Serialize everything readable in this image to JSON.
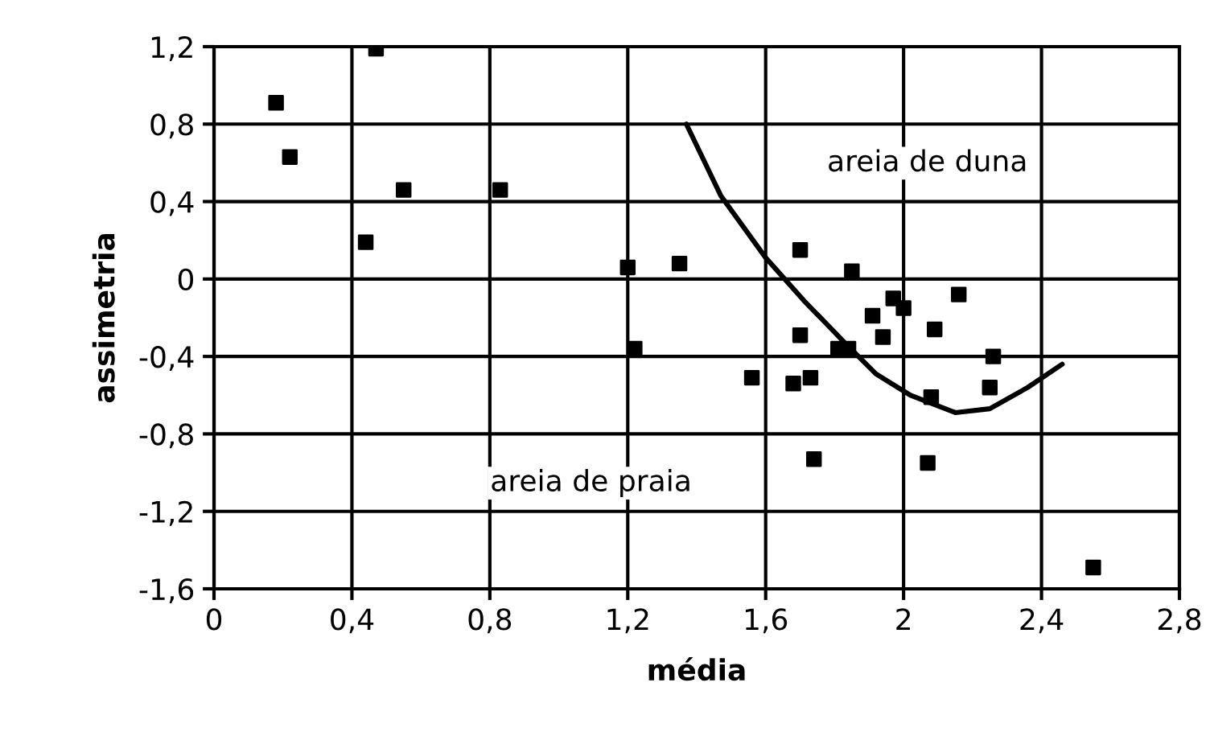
{
  "chart_data": {
    "type": "scatter",
    "xlabel": "média",
    "ylabel": "assimetria",
    "xlim": [
      0,
      2.8
    ],
    "ylim": [
      -1.6,
      1.2
    ],
    "xticks": [
      0,
      {
        "value": 0.4,
        "label": "0,4"
      },
      {
        "value": 0.8,
        "label": "0,8"
      },
      {
        "value": 1.2,
        "label": "1,2"
      },
      {
        "value": 1.6,
        "label": "1,6"
      },
      2,
      {
        "value": 2.4,
        "label": "2,4"
      },
      {
        "value": 2.8,
        "label": "2,8"
      }
    ],
    "yticks": [
      {
        "value": -1.6,
        "label": "-1,6"
      },
      {
        "value": -1.2,
        "label": "-1,2"
      },
      {
        "value": -0.8,
        "label": "-0,8"
      },
      {
        "value": -0.4,
        "label": "-0,4"
      },
      0,
      {
        "value": 0.4,
        "label": "0,4"
      },
      {
        "value": 0.8,
        "label": "0,8"
      },
      {
        "value": 1.2,
        "label": "1,2"
      }
    ],
    "grid": true,
    "legend": false,
    "series": [
      {
        "color": "#000000",
        "marker": "square",
        "x": [
          0.18,
          0.22,
          0.47,
          0.55,
          0.44,
          0.83,
          1.2,
          1.35,
          1.22,
          1.7,
          1.85,
          2.16,
          2.0,
          1.91,
          1.97,
          1.7,
          1.94,
          2.09,
          1.81,
          1.84,
          2.26,
          1.56,
          1.73,
          1.68,
          2.25,
          2.08,
          1.74,
          2.07,
          2.55
        ],
        "values": [
          0.91,
          0.63,
          1.19,
          0.46,
          0.19,
          0.46,
          0.06,
          0.08,
          -0.36,
          0.15,
          0.04,
          -0.08,
          -0.15,
          -0.19,
          -0.1,
          -0.29,
          -0.3,
          -0.26,
          -0.36,
          -0.36,
          -0.4,
          -0.51,
          -0.51,
          -0.54,
          -0.56,
          -0.61,
          -0.93,
          -0.95,
          -1.49
        ]
      },
      {
        "type": "line",
        "color": "#000000",
        "marker": "none",
        "line_style": "solid",
        "x": [
          1.37,
          1.47,
          1.6,
          1.71,
          1.83,
          1.92,
          2.02,
          2.15,
          2.25,
          2.36,
          2.46
        ],
        "values": [
          0.8,
          0.43,
          0.11,
          -0.11,
          -0.33,
          -0.49,
          -0.6,
          -0.69,
          -0.67,
          -0.56,
          -0.44
        ]
      }
    ],
    "annotations": [
      "areia de duna",
      "areia de praia"
    ]
  }
}
